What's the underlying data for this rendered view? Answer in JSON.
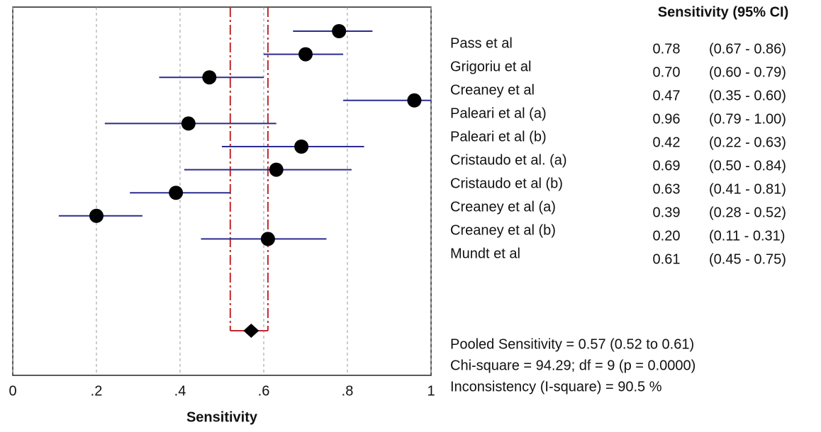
{
  "chart_data": {
    "type": "forest",
    "column_header": "Sensitivity (95% CI)",
    "xlabel": "Sensitivity",
    "categories": [
      "Pass et al",
      "Grigoriu et al",
      "Creaney  et al",
      "Paleari et al  (a)",
      "Paleari et al (b)",
      "Cristaudo et al. (a)",
      "Cristaudo et al (b)",
      "Creaney et al (a)",
      "Creaney et al (b)",
      "Mundt et al"
    ],
    "values": [
      0.78,
      0.7,
      0.47,
      0.96,
      0.42,
      0.69,
      0.63,
      0.39,
      0.2,
      0.61
    ],
    "value_labels": [
      "0.78",
      "0.70",
      "0.47",
      "0.96",
      "0.42",
      "0.69",
      "0.63",
      "0.39",
      "0.20",
      "0.61"
    ],
    "lower": [
      0.67,
      0.6,
      0.35,
      0.79,
      0.22,
      0.5,
      0.41,
      0.28,
      0.11,
      0.45
    ],
    "upper": [
      0.86,
      0.79,
      0.6,
      1.0,
      0.63,
      0.84,
      0.81,
      0.52,
      0.31,
      0.75
    ],
    "ci_labels": [
      "(0.67 - 0.86)",
      "(0.60 - 0.79)",
      "(0.35 - 0.60)",
      "(0.79 - 1.00)",
      "(0.22 - 0.63)",
      "(0.50 - 0.84)",
      "(0.41 - 0.81)",
      "(0.28 - 0.52)",
      "(0.11 - 0.31)",
      "(0.45 - 0.75)"
    ],
    "pooled": {
      "value": 0.57,
      "lower": 0.52,
      "upper": 0.61
    },
    "stats": [
      "Pooled Sensitivity = 0.57 (0.52 to 0.61)",
      "Chi-square = 94.29; df =  9 (p = 0.0000)",
      "Inconsistency (I-square) = 90.5 %"
    ],
    "xlim": [
      0,
      1
    ],
    "xticks": [
      0,
      {
        "value": 0.2,
        "label": ".2"
      },
      {
        "value": 0.4,
        "label": ".4"
      },
      {
        "value": 0.6,
        "label": ".6"
      },
      {
        "value": 0.8,
        "label": ".8"
      },
      1
    ],
    "grid": true,
    "color": "#2b2b8f",
    "marker_color": "#000000",
    "pooled_color": "#c0282c"
  }
}
